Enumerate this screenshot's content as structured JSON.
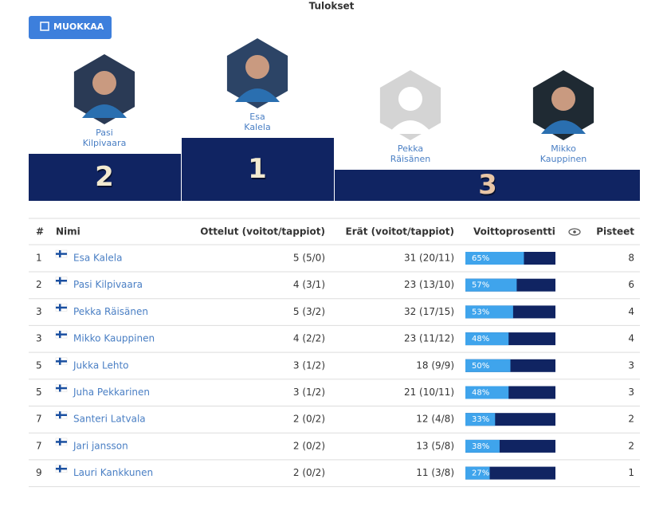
{
  "header": {
    "title": "Tulokset",
    "edit_button": "MUOKKAA"
  },
  "podium": [
    {
      "place": 2,
      "first_name": "Pasi",
      "last_name": "Kilpivaara"
    },
    {
      "place": 1,
      "first_name": "Esa",
      "last_name": "Kalela"
    },
    {
      "place": 3,
      "first_name": "Pekka",
      "last_name": "Räisänen"
    },
    {
      "first_name": "Mikko",
      "last_name": "Kauppinen"
    }
  ],
  "table": {
    "headers": {
      "rank": "#",
      "name": "Nimi",
      "matches": "Ottelut (voitot/tappiot)",
      "frames": "Erät (voitot/tappiot)",
      "win_pct": "Voittoprosentti",
      "points": "Pisteet"
    },
    "rows": [
      {
        "rank": 1,
        "name": "Esa Kalela",
        "matches": "5 (5/0)",
        "frames": "31 (20/11)",
        "win_pct": 65,
        "win_pct_label": "65%",
        "points": 8
      },
      {
        "rank": 2,
        "name": "Pasi Kilpivaara",
        "matches": "4 (3/1)",
        "frames": "23 (13/10)",
        "win_pct": 57,
        "win_pct_label": "57%",
        "points": 6
      },
      {
        "rank": 3,
        "name": "Pekka Räisänen",
        "matches": "5 (3/2)",
        "frames": "32 (17/15)",
        "win_pct": 53,
        "win_pct_label": "53%",
        "points": 4
      },
      {
        "rank": 3,
        "name": "Mikko Kauppinen",
        "matches": "4 (2/2)",
        "frames": "23 (11/12)",
        "win_pct": 48,
        "win_pct_label": "48%",
        "points": 4
      },
      {
        "rank": 5,
        "name": "Jukka Lehto",
        "matches": "3 (1/2)",
        "frames": "18 (9/9)",
        "win_pct": 50,
        "win_pct_label": "50%",
        "points": 3
      },
      {
        "rank": 5,
        "name": "Juha Pekkarinen",
        "matches": "3 (1/2)",
        "frames": "21 (10/11)",
        "win_pct": 48,
        "win_pct_label": "48%",
        "points": 3
      },
      {
        "rank": 7,
        "name": "Santeri Latvala",
        "matches": "2 (0/2)",
        "frames": "12 (4/8)",
        "win_pct": 33,
        "win_pct_label": "33%",
        "points": 2
      },
      {
        "rank": 7,
        "name": "Jari jansson",
        "matches": "2 (0/2)",
        "frames": "13 (5/8)",
        "win_pct": 38,
        "win_pct_label": "38%",
        "points": 2
      },
      {
        "rank": 9,
        "name": "Lauri Kankkunen",
        "matches": "2 (0/2)",
        "frames": "11 (3/8)",
        "win_pct": 27,
        "win_pct_label": "27%",
        "points": 1
      }
    ]
  }
}
